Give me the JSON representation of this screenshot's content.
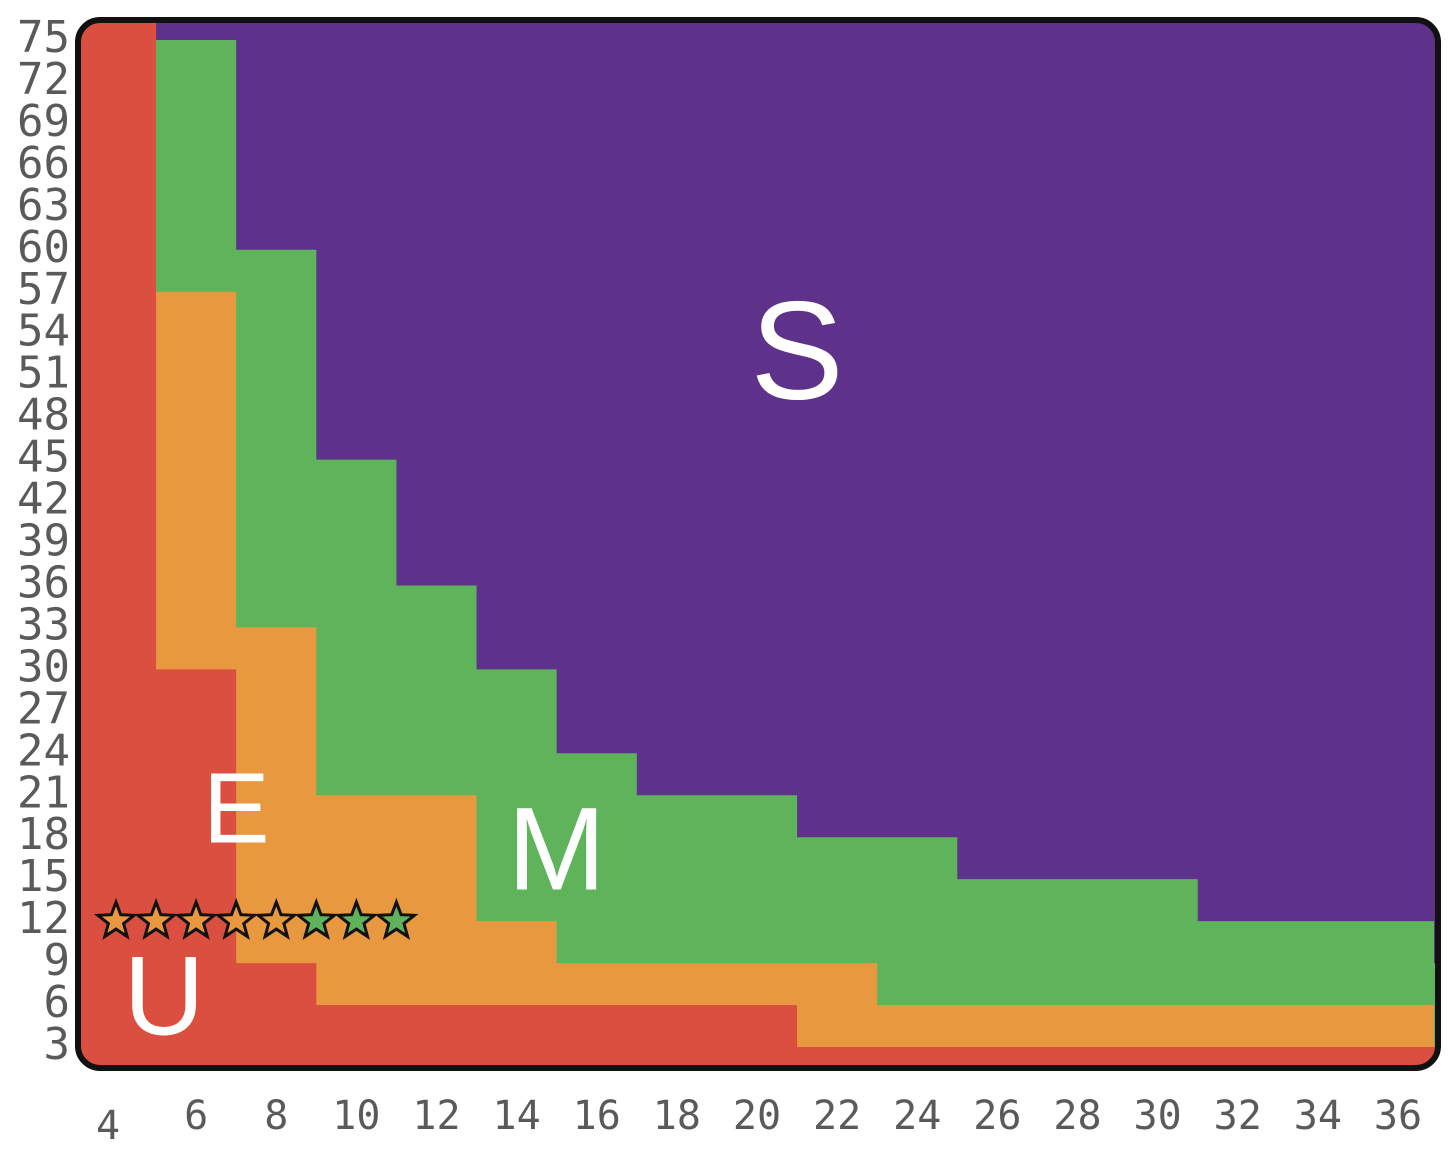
{
  "chart_data": {
    "type": "heatmap",
    "x_ticks": [
      "4",
      "6",
      "8",
      "10",
      "12",
      "14",
      "16",
      "18",
      "20",
      "22",
      "24",
      "26",
      "28",
      "30",
      "32",
      "34",
      "36"
    ],
    "y_ticks": [
      "3",
      "6",
      "9",
      "12",
      "15",
      "18",
      "21",
      "24",
      "27",
      "30",
      "33",
      "36",
      "39",
      "42",
      "45",
      "48",
      "51",
      "54",
      "57",
      "60",
      "63",
      "66",
      "69",
      "72",
      "75"
    ],
    "xlim": [
      4,
      36
    ],
    "ylim": [
      1.5,
      76.5
    ],
    "grid": false,
    "colors": {
      "U": "#db4f40",
      "E": "#e8983f",
      "M": "#5fb35a",
      "S": "#5e318b",
      "frame": "#111111",
      "tick_text": "#5a5a5a"
    },
    "regions": [
      {
        "label": "S",
        "color": "#5e318b",
        "label_at": [
          21,
          52
        ],
        "boundary_x": [
          5,
          7,
          9,
          11,
          13,
          15,
          17,
          21,
          25,
          31,
          36.9
        ],
        "boundary_y": [
          75,
          60,
          45,
          36,
          30,
          24,
          21,
          18,
          15,
          12,
          9
        ]
      },
      {
        "label": "M",
        "color": "#5fb35a",
        "label_at": [
          15,
          16.5
        ],
        "boundary_x": [
          5,
          7,
          9,
          13,
          15,
          23,
          36.9
        ],
        "boundary_y": [
          57,
          33,
          21,
          12,
          9,
          6,
          3
        ]
      },
      {
        "label": "E",
        "color": "#e8983f",
        "label_at": [
          7,
          19.5
        ],
        "boundary_x": [
          5,
          7,
          9,
          21
        ],
        "boundary_y": [
          30,
          9,
          6,
          3
        ]
      },
      {
        "label": "U",
        "color": "#db4f40",
        "label_at": [
          5.2,
          6
        ]
      }
    ],
    "markers": {
      "shape": "star-icon",
      "y": 12,
      "points": [
        {
          "x": 4,
          "color": "#e8983f"
        },
        {
          "x": 5,
          "color": "#e8983f"
        },
        {
          "x": 6,
          "color": "#e8983f"
        },
        {
          "x": 7,
          "color": "#e8983f"
        },
        {
          "x": 8,
          "color": "#e8983f"
        },
        {
          "x": 9,
          "color": "#5fb35a"
        },
        {
          "x": 10,
          "color": "#5fb35a"
        },
        {
          "x": 11,
          "color": "#5fb35a"
        }
      ]
    }
  }
}
